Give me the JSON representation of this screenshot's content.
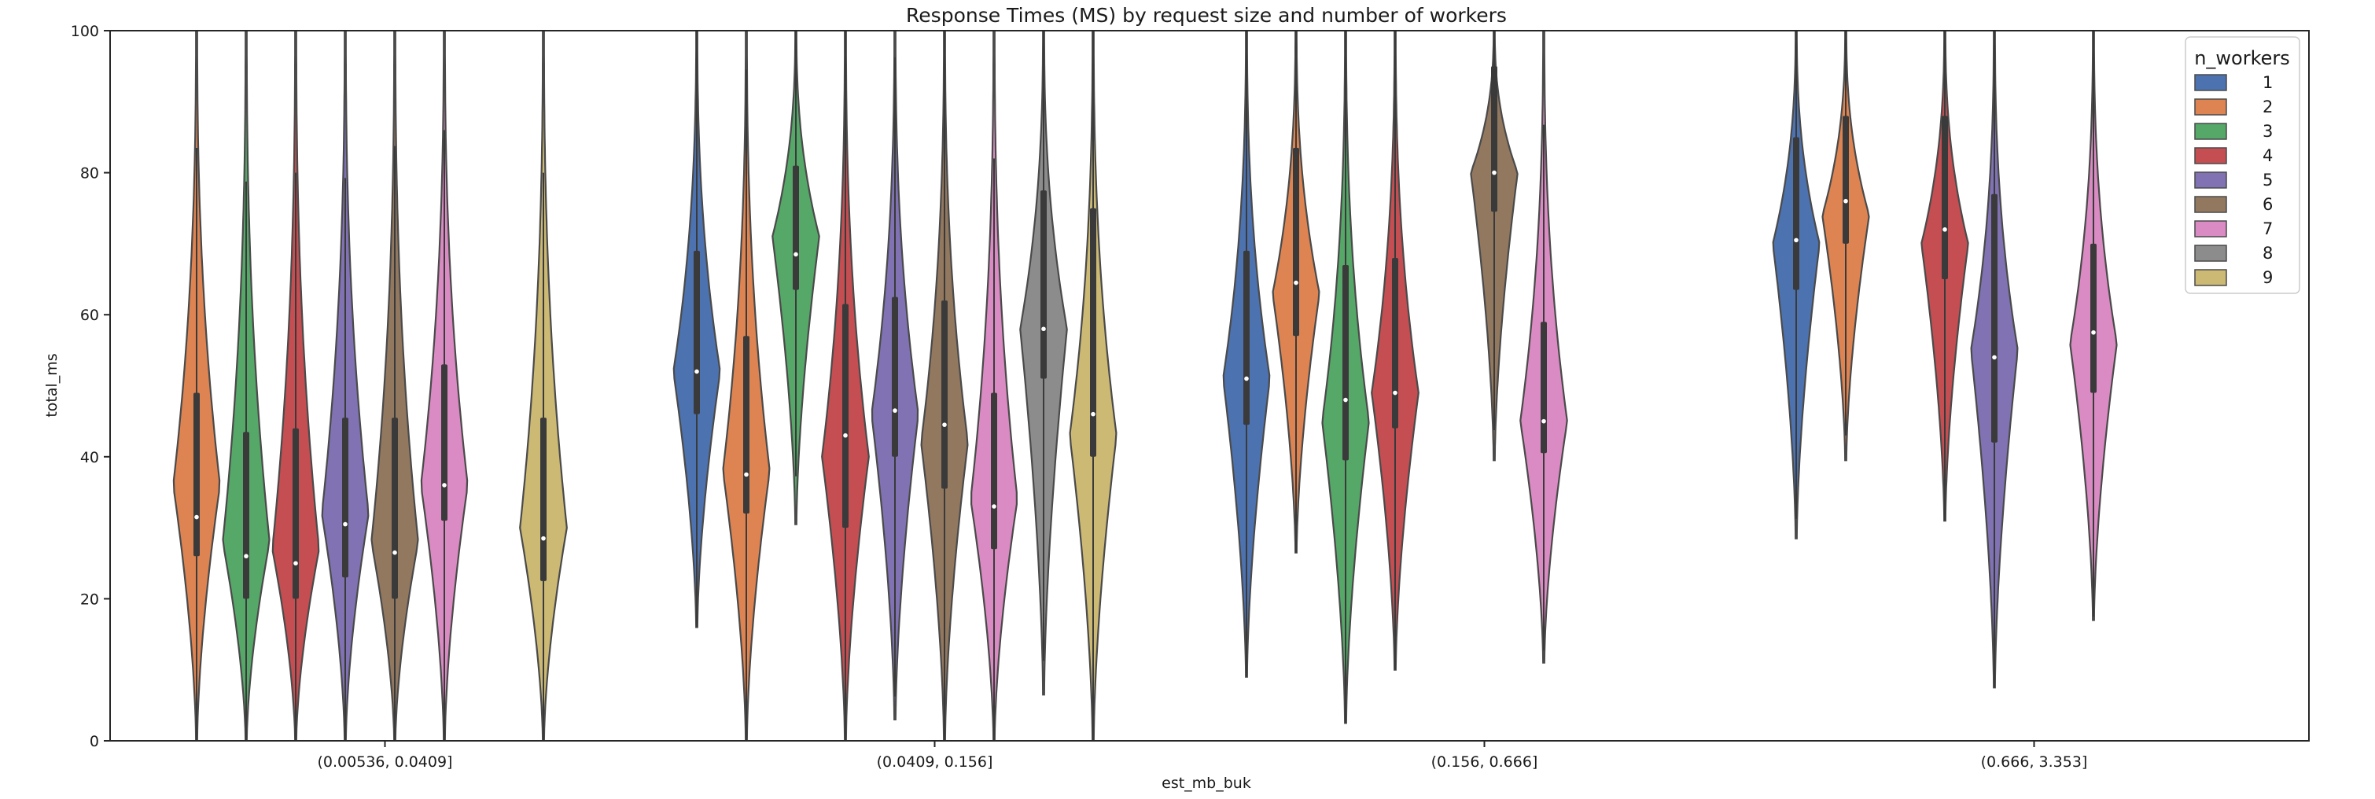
{
  "chart_data": {
    "type": "violin",
    "title": "Response Times (MS) by request size and number of workers",
    "xlabel": "est_mb_buk",
    "ylabel": "total_ms",
    "ylim": [
      0,
      100
    ],
    "yticks": [
      0,
      20,
      40,
      60,
      80,
      100
    ],
    "categories": [
      "(0.00536, 0.0409]",
      "(0.0409, 0.156]",
      "(0.156, 0.666]",
      "(0.666, 3.353]"
    ],
    "hue_levels": [
      "1",
      "2",
      "3",
      "4",
      "5",
      "6",
      "7",
      "8",
      "9"
    ],
    "legend": {
      "title": "n_workers",
      "position": "top-right"
    },
    "palette": [
      "#4c72b0",
      "#dd8452",
      "#55a868",
      "#c44e52",
      "#8172b3",
      "#937860",
      "#da8bc3",
      "#8c8c8c",
      "#ccb974"
    ],
    "violins": [
      {
        "category": 0,
        "hue": 1,
        "min": 0,
        "q1": 26,
        "median": 31.5,
        "q3": 49,
        "max": 100,
        "mode": 36
      },
      {
        "category": 0,
        "hue": 2,
        "min": 0,
        "q1": 20,
        "median": 26,
        "q3": 43.5,
        "max": 100,
        "mode": 28
      },
      {
        "category": 0,
        "hue": 3,
        "min": 0,
        "q1": 20,
        "median": 25,
        "q3": 44,
        "max": 100,
        "mode": 27
      },
      {
        "category": 0,
        "hue": 4,
        "min": 0,
        "q1": 23,
        "median": 30.5,
        "q3": 45.5,
        "max": 100,
        "mode": 32
      },
      {
        "category": 0,
        "hue": 5,
        "min": 0,
        "q1": 20,
        "median": 26.5,
        "q3": 45.5,
        "max": 100,
        "mode": 28
      },
      {
        "category": 0,
        "hue": 6,
        "min": 0,
        "q1": 31,
        "median": 36,
        "q3": 53,
        "max": 100,
        "mode": 36
      },
      {
        "category": 0,
        "hue": 8,
        "min": 0,
        "q1": 22.5,
        "median": 28.5,
        "q3": 45.5,
        "max": 100,
        "mode": 30
      },
      {
        "category": 1,
        "hue": 0,
        "min": 16,
        "q1": 46,
        "median": 52,
        "q3": 69,
        "max": 100,
        "mode": 52
      },
      {
        "category": 1,
        "hue": 1,
        "min": 0,
        "q1": 32,
        "median": 37.5,
        "q3": 57,
        "max": 100,
        "mode": 38
      },
      {
        "category": 1,
        "hue": 2,
        "min": 30.5,
        "q1": 63.5,
        "median": 68.5,
        "q3": 81,
        "max": 100,
        "mode": 71
      },
      {
        "category": 1,
        "hue": 3,
        "min": 0,
        "q1": 30,
        "median": 43,
        "q3": 61.5,
        "max": 100,
        "mode": 40
      },
      {
        "category": 1,
        "hue": 4,
        "min": 3,
        "q1": 40,
        "median": 46.5,
        "q3": 62.5,
        "max": 100,
        "mode": 46
      },
      {
        "category": 1,
        "hue": 5,
        "min": 0,
        "q1": 35.5,
        "median": 44.5,
        "q3": 62,
        "max": 100,
        "mode": 42
      },
      {
        "category": 1,
        "hue": 6,
        "min": 0,
        "q1": 27,
        "median": 33,
        "q3": 49,
        "max": 100,
        "mode": 34
      },
      {
        "category": 1,
        "hue": 7,
        "min": 6.5,
        "q1": 51,
        "median": 58,
        "q3": 77.5,
        "max": 100,
        "mode": 58
      },
      {
        "category": 1,
        "hue": 8,
        "min": 0,
        "q1": 40,
        "median": 46,
        "q3": 75,
        "max": 100,
        "mode": 43
      },
      {
        "category": 2,
        "hue": 0,
        "min": 9,
        "q1": 44.5,
        "median": 51,
        "q3": 69,
        "max": 100,
        "mode": 51
      },
      {
        "category": 2,
        "hue": 1,
        "min": 26.5,
        "q1": 57,
        "median": 64.5,
        "q3": 83.5,
        "max": 100,
        "mode": 63
      },
      {
        "category": 2,
        "hue": 2,
        "min": 2.5,
        "q1": 39.5,
        "median": 48,
        "q3": 67,
        "max": 100,
        "mode": 45
      },
      {
        "category": 2,
        "hue": 3,
        "min": 10,
        "q1": 44,
        "median": 49,
        "q3": 68,
        "max": 100,
        "mode": 49
      },
      {
        "category": 2,
        "hue": 5,
        "min": 39.5,
        "q1": 74.5,
        "median": 80,
        "q3": 95,
        "max": 100,
        "mode": 80
      },
      {
        "category": 2,
        "hue": 6,
        "min": 11,
        "q1": 40.5,
        "median": 45,
        "q3": 59,
        "max": 100,
        "mode": 45
      },
      {
        "category": 3,
        "hue": 0,
        "min": 28.5,
        "q1": 63.5,
        "median": 70.5,
        "q3": 85,
        "max": 100,
        "mode": 70
      },
      {
        "category": 3,
        "hue": 1,
        "min": 39.5,
        "q1": 70,
        "median": 76,
        "q3": 88,
        "max": 100,
        "mode": 74
      },
      {
        "category": 3,
        "hue": 3,
        "min": 31,
        "q1": 65,
        "median": 72,
        "q3": 88,
        "max": 100,
        "mode": 70
      },
      {
        "category": 3,
        "hue": 4,
        "min": 7.5,
        "q1": 42,
        "median": 54,
        "q3": 77,
        "max": 100,
        "mode": 55
      },
      {
        "category": 3,
        "hue": 6,
        "min": 17,
        "q1": 49,
        "median": 57.5,
        "q3": 70,
        "max": 100,
        "mode": 56
      }
    ]
  }
}
